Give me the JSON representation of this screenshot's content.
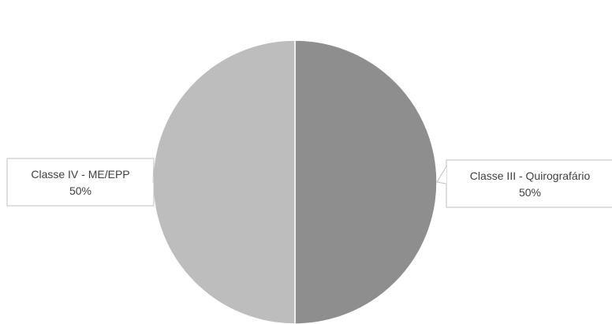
{
  "chart_data": {
    "type": "pie",
    "title": "",
    "slices": [
      {
        "label": "Classe III - Quirografário",
        "value": 50,
        "percent_label": "50%",
        "color": "#8e8e8e"
      },
      {
        "label": "Classe IV - ME/EPP",
        "value": 50,
        "percent_label": "50%",
        "color": "#bdbdbd"
      }
    ],
    "data_labels": "callouts",
    "legend": "none"
  }
}
